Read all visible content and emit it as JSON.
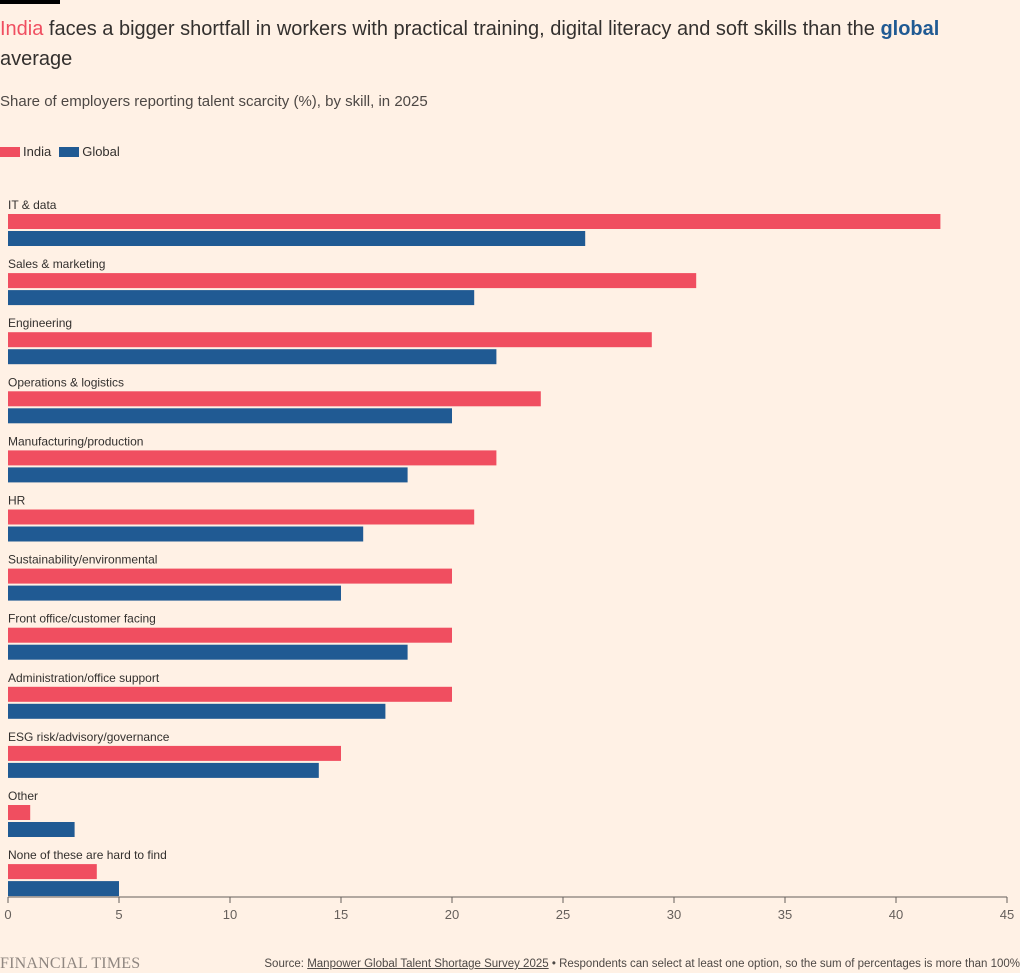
{
  "header": {
    "title_india": "India",
    "title_middle": " faces a bigger shortfall in workers with practical training, digital literacy and soft skills than the ",
    "title_global": "global",
    "title_end": " average",
    "subtitle": "Share of employers reporting talent scarcity (%), by skill, in 2025"
  },
  "legend": [
    {
      "label": "India",
      "color": "#f04e60"
    },
    {
      "label": "Global",
      "color": "#205a93"
    }
  ],
  "footer": {
    "brand": "FINANCIAL TIMES",
    "source_prefix": "Source: ",
    "source_link": "Manpower Global Talent Shortage Survey 2025",
    "source_note": " • Respondents can select at least one option, so the sum of percentages is more than 100%"
  },
  "chart_data": {
    "type": "bar",
    "orientation": "horizontal",
    "title": "India faces a bigger shortfall in workers with practical training, digital literacy and soft skills than the global average",
    "subtitle": "Share of employers reporting talent scarcity (%), by skill, in 2025",
    "xlabel": "",
    "ylabel": "",
    "xlim": [
      0,
      45
    ],
    "xticks": [
      0,
      5,
      10,
      15,
      20,
      25,
      30,
      35,
      40,
      45
    ],
    "grid": false,
    "legend_position": "top-left",
    "categories": [
      "IT & data",
      "Sales & marketing",
      "Engineering",
      "Operations & logistics",
      "Manufacturing/production",
      "HR",
      "Sustainability/environmental",
      "Front office/customer facing",
      "Administration/office support",
      "ESG risk/advisory/governance",
      "Other",
      "None of these are hard to find"
    ],
    "series": [
      {
        "name": "India",
        "color": "#f04e60",
        "values": [
          42,
          31,
          29,
          24,
          22,
          21,
          20,
          20,
          20,
          15,
          1,
          4
        ]
      },
      {
        "name": "Global",
        "color": "#205a93",
        "values": [
          26,
          21,
          22,
          20,
          18,
          16,
          15,
          18,
          17,
          14,
          3,
          5
        ]
      }
    ]
  }
}
